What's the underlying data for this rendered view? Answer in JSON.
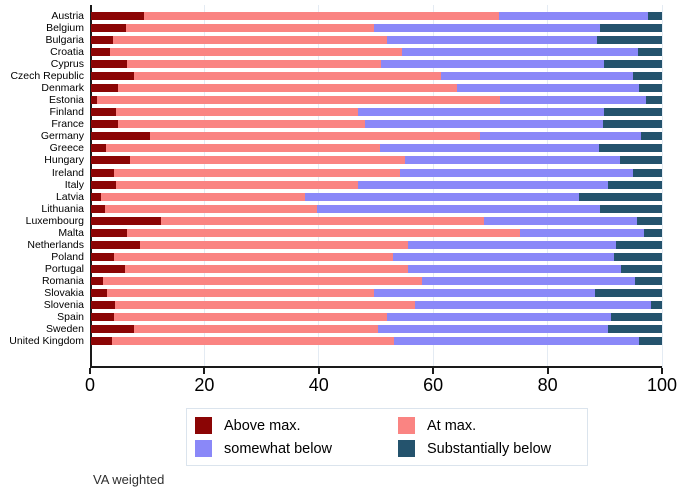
{
  "note": "VA weighted",
  "chart_data": {
    "type": "bar",
    "orientation": "horizontal",
    "stacked": true,
    "title": "",
    "xlabel": "",
    "ylabel": "",
    "xlim": [
      0,
      100
    ],
    "xticks": [
      0,
      20,
      40,
      60,
      80,
      100
    ],
    "grid": "vertical light-blue gridlines at ticks",
    "legend_position": "bottom-center box, 2 columns",
    "note": "VA weighted",
    "categories": [
      "Austria",
      "Belgium",
      "Bulgaria",
      "Croatia",
      "Cyprus",
      "Czech Republic",
      "Denmark",
      "Estonia",
      "Finland",
      "France",
      "Germany",
      "Greece",
      "Hungary",
      "Ireland",
      "Italy",
      "Latvia",
      "Lithuania",
      "Luxembourg",
      "Malta",
      "Netherlands",
      "Poland",
      "Portugal",
      "Romania",
      "Slovakia",
      "Slovenia",
      "Spain",
      "Sweden",
      "United Kingdom"
    ],
    "series": [
      {
        "name": "Above max.",
        "key": "above-max",
        "color": "#8b0505",
        "values": [
          9.2,
          6.2,
          3.8,
          3.4,
          6.3,
          7.6,
          4.8,
          1.1,
          4.4,
          4.8,
          10.3,
          2.7,
          6.9,
          4.0,
          4.4,
          1.8,
          2.5,
          12.2,
          6.3,
          8.6,
          4.0,
          5.9,
          2.1,
          2.8,
          4.2,
          4.0,
          7.6,
          3.7
        ]
      },
      {
        "name": "At max.",
        "key": "at-max",
        "color": "#fa8482",
        "values": [
          62.2,
          43.4,
          48.0,
          51.0,
          44.5,
          53.7,
          59.3,
          70.5,
          42.3,
          43.1,
          57.9,
          47.9,
          48.1,
          50.2,
          42.4,
          35.6,
          37.0,
          56.7,
          68.9,
          47.0,
          48.9,
          49.7,
          55.9,
          46.7,
          52.5,
          47.9,
          42.6,
          49.4
        ]
      },
      {
        "name": "somewhat below",
        "key": "somewhat-below",
        "color": "#8a88f8",
        "values": [
          26.1,
          39.5,
          36.8,
          41.4,
          39.0,
          33.6,
          31.9,
          25.6,
          43.1,
          41.8,
          28.1,
          38.3,
          37.7,
          40.7,
          43.7,
          48.1,
          49.6,
          26.7,
          21.7,
          36.4,
          38.7,
          37.3,
          37.2,
          38.8,
          41.4,
          39.2,
          40.4,
          42.9
        ]
      },
      {
        "name": "Substantially below",
        "key": "substantially-below",
        "color": "#24536d",
        "values": [
          2.5,
          10.9,
          11.4,
          4.2,
          10.2,
          5.1,
          4.0,
          2.8,
          10.2,
          10.3,
          3.7,
          11.1,
          7.3,
          5.1,
          9.5,
          14.5,
          10.9,
          4.4,
          3.1,
          8.0,
          8.4,
          7.1,
          4.8,
          11.7,
          1.9,
          8.9,
          9.4,
          4.0
        ]
      }
    ]
  }
}
